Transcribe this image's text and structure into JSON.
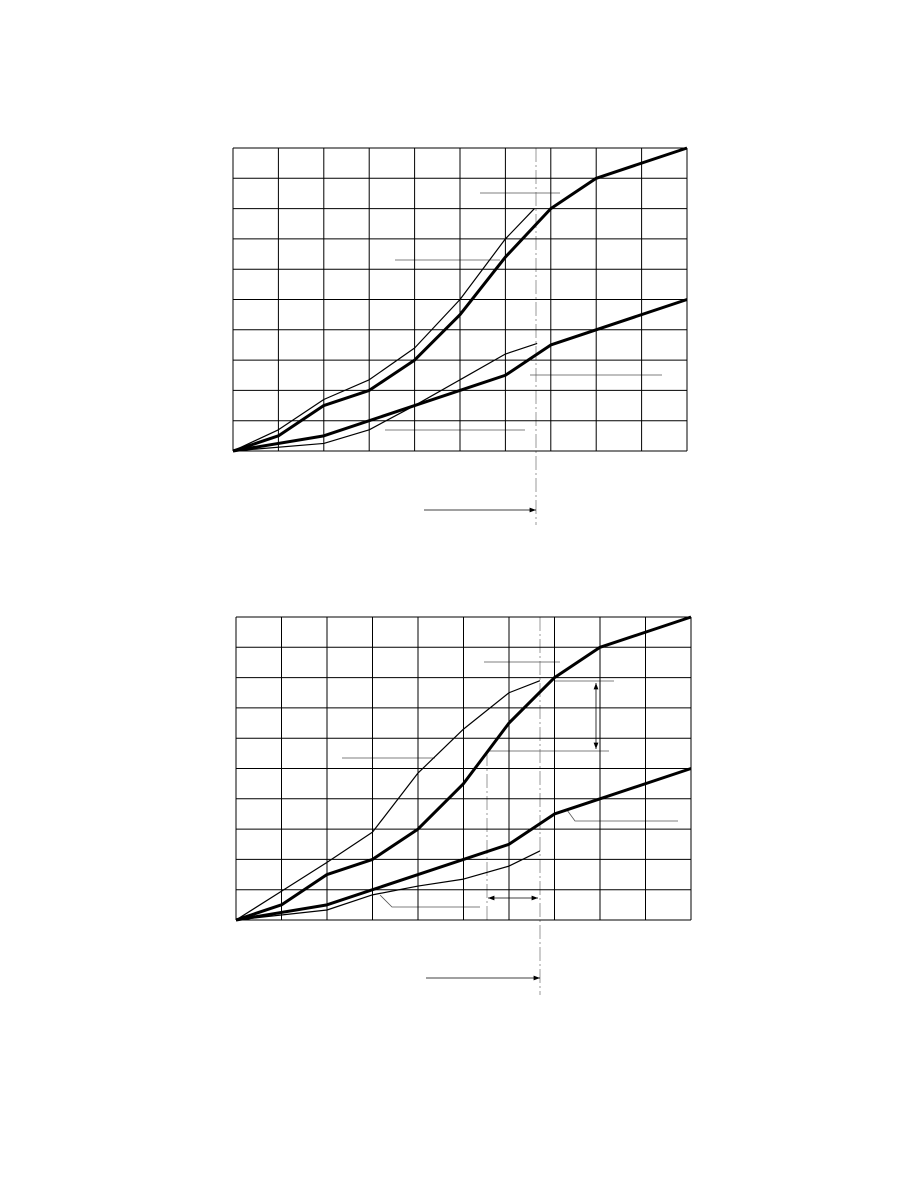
{
  "chart_data": [
    {
      "type": "line",
      "xlim": [
        0,
        10
      ],
      "ylim": [
        0,
        10
      ],
      "xticks": [
        0,
        1,
        2,
        3,
        4,
        5,
        6,
        7,
        8,
        9,
        10
      ],
      "yticks": [
        0,
        1,
        2,
        3,
        4,
        5,
        6,
        7,
        8,
        9,
        10
      ],
      "grid": true,
      "series": [
        {
          "style": "thick",
          "color": "#000",
          "x": [
            0,
            1,
            2,
            3,
            4,
            5,
            6,
            7,
            8,
            10
          ],
          "values": [
            0,
            0.5,
            1.5,
            2,
            3,
            4.5,
            6.4,
            8,
            9,
            10
          ]
        },
        {
          "style": "thin",
          "color": "#000",
          "x": [
            0,
            1,
            2,
            3,
            4,
            5,
            6,
            6.64
          ],
          "values": [
            0,
            0.7,
            1.7,
            2.35,
            3.4,
            5,
            7,
            8
          ]
        },
        {
          "style": "thick",
          "color": "#000",
          "x": [
            0,
            2,
            4,
            6,
            7,
            10
          ],
          "values": [
            0,
            0.5,
            1.5,
            2.5,
            3.5,
            5
          ]
        },
        {
          "style": "thin",
          "color": "#000",
          "x": [
            0,
            2,
            3,
            4,
            5,
            6,
            6.7
          ],
          "values": [
            0,
            0.25,
            0.7,
            1.5,
            2.35,
            3.2,
            3.55
          ]
        }
      ]
    },
    {
      "type": "line",
      "xlim": [
        0,
        10
      ],
      "ylim": [
        0,
        10
      ],
      "xticks": [
        0,
        1,
        2,
        3,
        4,
        5,
        6,
        7,
        8,
        9,
        10
      ],
      "yticks": [
        0,
        1,
        2,
        3,
        4,
        5,
        6,
        7,
        8,
        9,
        10
      ],
      "grid": true,
      "series": [
        {
          "style": "thick",
          "color": "#000",
          "x": [
            0,
            1,
            2,
            3,
            4,
            5,
            6,
            7,
            8,
            10
          ],
          "values": [
            0,
            0.5,
            1.5,
            2,
            3,
            4.5,
            6.5,
            8,
            9,
            10
          ]
        },
        {
          "style": "thin",
          "color": "#000",
          "x": [
            0,
            2,
            3,
            4,
            5,
            6,
            6.68
          ],
          "values": [
            0,
            1.9,
            2.9,
            4.85,
            6.3,
            7.5,
            7.9
          ]
        },
        {
          "style": "thick",
          "color": "#000",
          "x": [
            0,
            2,
            4,
            6,
            7,
            8,
            10
          ],
          "values": [
            0,
            0.5,
            1.5,
            2.5,
            3.5,
            4,
            5
          ]
        },
        {
          "style": "thin",
          "color": "#000",
          "x": [
            0,
            2,
            3,
            4,
            5,
            6,
            6.68
          ],
          "values": [
            0,
            0.33,
            0.83,
            1.12,
            1.35,
            1.78,
            2.28
          ]
        }
      ]
    }
  ]
}
